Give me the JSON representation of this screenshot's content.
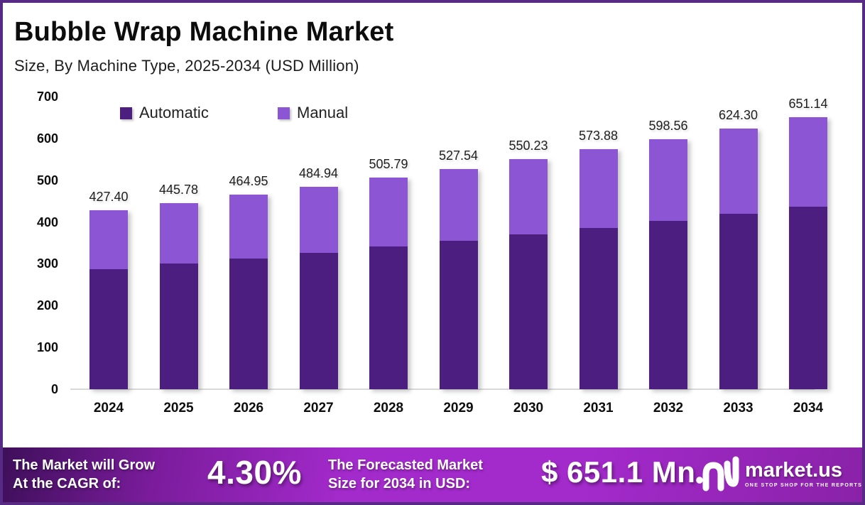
{
  "header": {
    "title": "Bubble Wrap Machine Market",
    "subtitle": "Size, By Machine Type, 2025-2034 (USD Million)"
  },
  "chart_data": {
    "type": "bar",
    "stacked": true,
    "title": "Bubble Wrap Machine Market Size, By Machine Type, 2025-2034 (USD Million)",
    "categories": [
      "2024",
      "2025",
      "2026",
      "2027",
      "2028",
      "2029",
      "2030",
      "2031",
      "2032",
      "2033",
      "2034"
    ],
    "series": [
      {
        "name": "Automatic",
        "color": "#4b1e7f",
        "values": [
          287.0,
          300.0,
          313.0,
          326.0,
          341.0,
          355.0,
          370.0,
          386.0,
          402.0,
          419.0,
          437.0
        ]
      },
      {
        "name": "Manual",
        "color": "#8c55d4",
        "values": [
          140.4,
          145.78,
          151.95,
          158.94,
          164.79,
          172.54,
          180.23,
          187.88,
          196.56,
          205.3,
          214.14
        ]
      }
    ],
    "totals": [
      427.4,
      445.78,
      464.95,
      484.94,
      505.79,
      527.54,
      550.23,
      573.88,
      598.56,
      624.3,
      651.14
    ],
    "total_labels": [
      "427.40",
      "445.78",
      "464.95",
      "484.94",
      "505.79",
      "527.54",
      "550.23",
      "573.88",
      "598.56",
      "624.30",
      "651.14"
    ],
    "ylim": [
      0,
      700
    ],
    "yticks": [
      "0",
      "100",
      "200",
      "300",
      "400",
      "500",
      "600",
      "700"
    ],
    "grid": false,
    "legend_position": "top-left"
  },
  "footer": {
    "cagr_label_line1": "The Market will Grow",
    "cagr_label_line2": "At the CAGR of:",
    "cagr_value": "4.30%",
    "forecast_label_line1": "The Forecasted Market",
    "forecast_label_line2": "Size for 2034 in USD:",
    "forecast_value": "$ 651.1 Mn",
    "brand": {
      "name": "market.us",
      "tagline": "ONE STOP SHOP FOR THE REPORTS"
    }
  }
}
